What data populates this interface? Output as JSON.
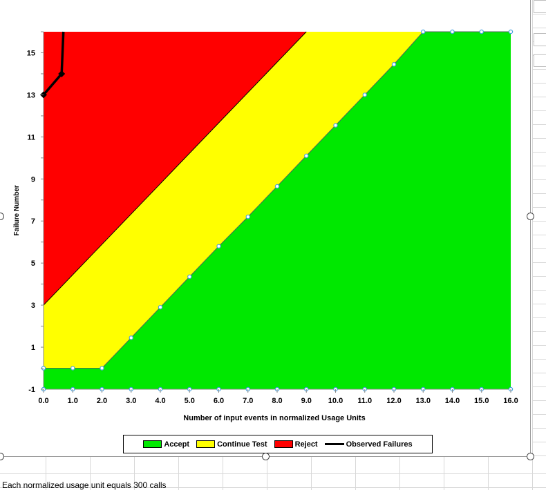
{
  "chart_data": {
    "type": "area",
    "xlabel": "Number of input events in normalized Usage Units",
    "ylabel": "Failure Number",
    "xlim": [
      0,
      16
    ],
    "ylim": [
      -1,
      16
    ],
    "x_ticks": [
      "0.0",
      "1.0",
      "2.0",
      "3.0",
      "4.0",
      "5.0",
      "6.0",
      "7.0",
      "8.0",
      "9.0",
      "10.0",
      "11.0",
      "12.0",
      "13.0",
      "14.0",
      "15.0",
      "16.0"
    ],
    "y_ticks": [
      "-1",
      "1",
      "3",
      "5",
      "7",
      "9",
      "11",
      "13",
      "15"
    ],
    "legend_position": "bottom",
    "series": [
      {
        "name": "Accept",
        "color": "#00e800",
        "x": [
          0,
          1,
          2,
          3,
          4,
          5,
          6,
          7,
          8,
          9,
          10,
          11,
          12,
          13,
          14,
          15,
          16
        ],
        "y": [
          0,
          0,
          0,
          1.45,
          2.9,
          4.35,
          5.8,
          7.2,
          8.65,
          10.1,
          11.55,
          13.0,
          14.45,
          16,
          16,
          16,
          16
        ]
      },
      {
        "name": "Continue Test",
        "color": "#ffff00",
        "x": [
          0,
          9
        ],
        "y": [
          3,
          16
        ]
      },
      {
        "name": "Reject",
        "color": "#ff0000",
        "x": [
          0,
          16
        ],
        "y": [
          16,
          16
        ]
      },
      {
        "name": "Observed Failures",
        "color": "#000000",
        "x": [
          0,
          0.62,
          0.68
        ],
        "y": [
          13,
          14,
          16
        ]
      }
    ]
  },
  "footer_note": "Each normalized usage unit equals 300 calls"
}
